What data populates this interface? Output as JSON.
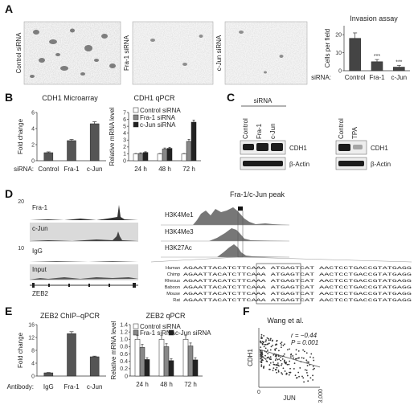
{
  "panels": {
    "A": {
      "label": "A",
      "images": [
        "Control siRNA",
        "Fra-1 siRNA",
        "c-Jun siRNA"
      ],
      "chart": {
        "title": "Invasion assay",
        "ylabel": "Cells per field",
        "xlabel_prefix": "siRNA:",
        "categories": [
          "Control",
          "Fra-1",
          "c-Jun"
        ],
        "values": [
          18,
          5,
          2
        ],
        "errors": [
          3,
          1.2,
          1
        ],
        "significance": [
          "",
          "***",
          "***"
        ],
        "ylim": [
          0,
          25
        ],
        "yticks": [
          "0",
          "10",
          "20"
        ]
      }
    },
    "B": {
      "label": "B",
      "microarray": {
        "title": "CDH1 Microarray",
        "ylabel": "Fold change",
        "xlabel_prefix": "siRNA:",
        "categories": [
          "Control",
          "Fra-1",
          "c-Jun"
        ],
        "values": [
          1,
          2.5,
          4.6
        ],
        "errors": [
          0.1,
          0.15,
          0.25
        ],
        "ylim": [
          0,
          6
        ],
        "yticks": [
          "0",
          "2",
          "4",
          "6"
        ]
      },
      "qpcr": {
        "title": "CDH1 qPCR",
        "ylabel": "Relative mRNA level",
        "legend": [
          "Control siRNA",
          "Fra-1 siRNA",
          "c-Jun siRNA"
        ],
        "categories": [
          "24 h",
          "48 h",
          "72 h"
        ],
        "series": [
          {
            "name": "Control siRNA",
            "values": [
              1,
              1,
              1
            ],
            "errors": [
              0.05,
              0.05,
              0.05
            ],
            "color": "#ffffff"
          },
          {
            "name": "Fra-1 siRNA",
            "values": [
              1.05,
              1.7,
              2.8
            ],
            "errors": [
              0.1,
              0.15,
              0.3
            ],
            "color": "#888888"
          },
          {
            "name": "c-Jun siRNA",
            "values": [
              1.2,
              1.8,
              5.6
            ],
            "errors": [
              0.1,
              0.15,
              0.3
            ],
            "color": "#222222"
          }
        ],
        "ylim": [
          0,
          7
        ],
        "yticks": [
          "0",
          "1",
          "2",
          "3",
          "4",
          "5",
          "6",
          "7"
        ]
      }
    },
    "C": {
      "label": "C",
      "group_label": "siRNA",
      "lanes_left": [
        "Control",
        "Fra-1",
        "c-Jun"
      ],
      "lanes_right": [
        "Control",
        "TPA"
      ],
      "bands": [
        "CDH1",
        "β-Actin"
      ]
    },
    "D": {
      "label": "D",
      "tracks": [
        "Fra-1",
        "c-Jun",
        "IgG",
        "Input"
      ],
      "gene": "ZEB2",
      "peak_title": "Fra-1/c-Jun peak",
      "histone_tracks": [
        "H3K4Me1",
        "H3K4Me3",
        "H3K27Ac"
      ],
      "species": [
        "Human",
        "Chimp",
        "Rhesus",
        "Baboon",
        "Mouse",
        "Rat"
      ],
      "sequences": [
        "AGAATTACATCTTCAAA ATGAGTCAT AACTCCTGACCGTATGAGG",
        "AGAATTACATCTTCAAA ATGAGTCAT AACTCCTGACCGTATGAGG",
        "AGAATTACATCTTCAAA ATGAGTCAT AACTCCTGACCGTATGAGG",
        "AGAATTACATCTTCAAA ATGAGTCAT AACTCCTGACCGTATGAGG",
        "AGAATTACATCTTCAAA ATGAGTCAT AACTCCTGACCGTATGAGG",
        "AGAATTACATCTTCAAA ATGAGTCAT AACTCCTGACCGTATGAGG"
      ],
      "ticks_top": [
        "20",
        "10"
      ]
    },
    "E": {
      "label": "E",
      "chip": {
        "title": "ZEB2 ChIP–qPCR",
        "ylabel": "Fold change",
        "xlabel_prefix": "Antibody:",
        "categories": [
          "IgG",
          "Fra-1",
          "c-Jun"
        ],
        "values": [
          1,
          13.2,
          6
        ],
        "errors": [
          0.1,
          0.6,
          0.2
        ],
        "ylim": [
          0,
          16
        ],
        "yticks": [
          "0",
          "4",
          "8",
          "12",
          "16"
        ]
      },
      "qpcr": {
        "title": "ZEB2 qPCR",
        "ylabel": "Relative mRNA level",
        "legend": [
          "Control siRNA",
          "Fra-1 siRNA",
          "c-Jun siRNA"
        ],
        "categories": [
          "24 h",
          "48 h",
          "72 h"
        ],
        "series": [
          {
            "name": "Control siRNA",
            "values": [
              1,
              1,
              1
            ],
            "errors": [
              0.1,
              0.1,
              0.1
            ],
            "color": "#ffffff"
          },
          {
            "name": "Fra-1 siRNA",
            "values": [
              0.78,
              0.8,
              0.82
            ],
            "errors": [
              0.08,
              0.08,
              0.08
            ],
            "color": "#888888"
          },
          {
            "name": "c-Jun siRNA",
            "values": [
              0.45,
              0.42,
              0.44
            ],
            "errors": [
              0.05,
              0.05,
              0.06
            ],
            "color": "#222222"
          }
        ],
        "ylim": [
          0,
          1.4
        ],
        "yticks": [
          "0",
          "0.2",
          "0.4",
          "0.6",
          "0.8",
          "1.0",
          "1.2",
          "1.4"
        ]
      }
    },
    "F": {
      "label": "F",
      "title": "Wang et al.",
      "ylabel": "CDH1",
      "xlabel": "JUN",
      "r_text": "r = −0.44",
      "p_text": "P = 0.001",
      "xtick_start": "0",
      "xtick_end": "3,000"
    }
  },
  "chart_data": [
    {
      "type": "bar",
      "title": "Invasion assay",
      "ylabel": "Cells per field",
      "categories": [
        "Control",
        "Fra-1",
        "c-Jun"
      ],
      "values": [
        18,
        5,
        2
      ],
      "ylim": [
        0,
        25
      ]
    },
    {
      "type": "bar",
      "title": "CDH1 Microarray",
      "ylabel": "Fold change",
      "categories": [
        "Control",
        "Fra-1",
        "c-Jun"
      ],
      "values": [
        1,
        2.5,
        4.6
      ],
      "ylim": [
        0,
        6
      ]
    },
    {
      "type": "bar",
      "title": "CDH1 qPCR",
      "ylabel": "Relative mRNA level",
      "categories": [
        "24 h",
        "48 h",
        "72 h"
      ],
      "series": [
        {
          "name": "Control siRNA",
          "values": [
            1,
            1,
            1
          ]
        },
        {
          "name": "Fra-1 siRNA",
          "values": [
            1.05,
            1.7,
            2.8
          ]
        },
        {
          "name": "c-Jun siRNA",
          "values": [
            1.2,
            1.8,
            5.6
          ]
        }
      ],
      "ylim": [
        0,
        7
      ]
    },
    {
      "type": "bar",
      "title": "ZEB2 ChIP–qPCR",
      "ylabel": "Fold change",
      "categories": [
        "IgG",
        "Fra-1",
        "c-Jun"
      ],
      "values": [
        1,
        13.2,
        6
      ],
      "ylim": [
        0,
        16
      ]
    },
    {
      "type": "bar",
      "title": "ZEB2 qPCR",
      "ylabel": "Relative mRNA level",
      "categories": [
        "24 h",
        "48 h",
        "72 h"
      ],
      "series": [
        {
          "name": "Control siRNA",
          "values": [
            1,
            1,
            1
          ]
        },
        {
          "name": "Fra-1 siRNA",
          "values": [
            0.78,
            0.8,
            0.82
          ]
        },
        {
          "name": "c-Jun siRNA",
          "values": [
            0.45,
            0.42,
            0.44
          ]
        }
      ],
      "ylim": [
        0,
        1.4
      ]
    },
    {
      "type": "scatter",
      "title": "Wang et al.",
      "xlabel": "JUN",
      "ylabel": "CDH1",
      "xlim": [
        0,
        3000
      ],
      "r": -0.44,
      "p": 0.001
    }
  ]
}
